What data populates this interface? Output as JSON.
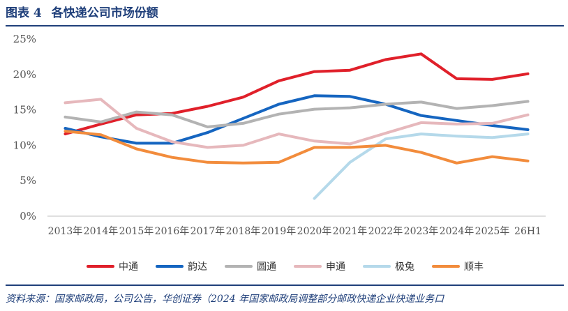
{
  "figure": {
    "label": "图表 4",
    "title": "各快递公司市场份额",
    "source": "资料来源：国家邮政局，公司公告，华创证券（2024 年国家邮政局调整部分邮政快递企业快递业务口"
  },
  "chart_data": {
    "type": "line",
    "title": "",
    "xlabel": "",
    "ylabel": "",
    "x": [
      "2013年",
      "2014年",
      "2015年",
      "2016年",
      "2017年",
      "2018年",
      "2019年",
      "2020年",
      "2021年",
      "2022年",
      "2023年",
      "2024年",
      "2025年",
      "26H1"
    ],
    "yticks": [
      "25%",
      "20%",
      "15%",
      "10%",
      "5%",
      "0%"
    ],
    "ylim": [
      0,
      25
    ],
    "grid": false,
    "legend_position": "bottom",
    "series": [
      {
        "name": "中通",
        "color": "#e0202a",
        "values": [
          11.6,
          13.0,
          14.3,
          14.5,
          15.5,
          16.8,
          19.1,
          20.4,
          20.6,
          22.1,
          22.9,
          19.4,
          19.3,
          20.1
        ]
      },
      {
        "name": "韵达",
        "color": "#1565c0",
        "values": [
          12.4,
          11.2,
          10.3,
          10.3,
          11.8,
          13.8,
          15.8,
          17.0,
          16.9,
          15.8,
          14.2,
          13.5,
          12.8,
          12.2
        ]
      },
      {
        "name": "圆通",
        "color": "#b3b3b3",
        "values": [
          14.0,
          13.3,
          14.7,
          14.3,
          12.6,
          13.1,
          14.4,
          15.1,
          15.3,
          15.8,
          16.1,
          15.2,
          15.6,
          16.2
        ]
      },
      {
        "name": "申通",
        "color": "#e6b8bc",
        "values": [
          16.0,
          16.5,
          12.4,
          10.5,
          9.7,
          10.0,
          11.6,
          10.6,
          10.2,
          11.7,
          13.2,
          13.0,
          13.1,
          14.3
        ]
      },
      {
        "name": "极兔",
        "color": "#b5d9ea",
        "values": [
          null,
          null,
          null,
          null,
          null,
          null,
          null,
          2.5,
          7.6,
          10.9,
          11.6,
          11.3,
          11.1,
          11.6
        ]
      },
      {
        "name": "顺丰",
        "color": "#f28c3c",
        "values": [
          12.0,
          11.5,
          9.5,
          8.3,
          7.6,
          7.5,
          7.6,
          9.7,
          9.7,
          10.0,
          9.0,
          7.5,
          8.4,
          7.8
        ]
      }
    ]
  }
}
